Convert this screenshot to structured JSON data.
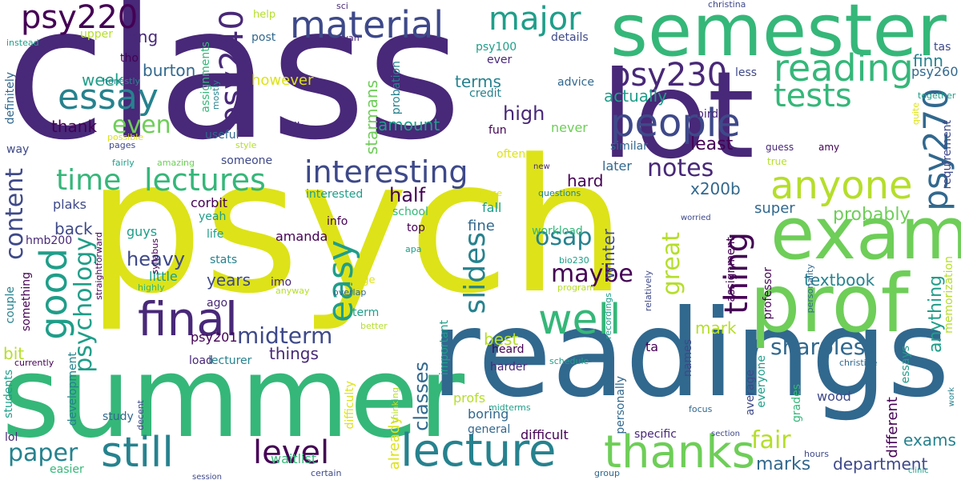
{
  "words": {
    "class": "class",
    "psych": "psych",
    "summer": "summer",
    "readings": "readings",
    "lot": "lot",
    "semester": "semester",
    "exam": "exam",
    "prof": "prof",
    "thanks": "thanks",
    "final": "final",
    "lecture": "lecture",
    "people": "people",
    "still": "still",
    "well": "well",
    "reading": "reading",
    "tests": "tests",
    "anyone": "anyone",
    "psy230": "psy230",
    "psy220": "psy220",
    "psy240": "psy240",
    "psy270": "psy270",
    "material": "material",
    "major": "major",
    "essay": "essay",
    "good": "good",
    "interesting": "interesting",
    "time": "time",
    "lectures": "lectures",
    "easy": "easy",
    "level": "level",
    "slides": "slides",
    "thing": "thing",
    "midterm": "midterm",
    "psychology": "psychology",
    "great": "great",
    "maybe": "maybe",
    "paper": "paper",
    "sharples": "sharples",
    "fair": "fair",
    "content": "content",
    "even": "even",
    "notes": "notes",
    "heavy": "heavy",
    "probably": "probably",
    "osap": "osap",
    "half": "half",
    "classes": "classes",
    "exams": "exams",
    "marks": "marks",
    "department": "department",
    "textbook": "textbook",
    "things": "things",
    "years": "years",
    "anything": "anything",
    "mark": "mark",
    "terms": "terms",
    "high": "high",
    "amount": "amount",
    "week": "week",
    "burton": "burton",
    "long": "long",
    "thank": "thank",
    "actually": "actually",
    "however": "however",
    "starmans": "starmans",
    "x200b": "x200b",
    "least": "least",
    "hard": "hard",
    "super": "super",
    "bit": "bit",
    "back": "back",
    "difficult": "difficult",
    "specific": "specific",
    "boring": "boring",
    "amanda": "amanda",
    "already": "already",
    "waitlist": "waitlist",
    "winter": "winter",
    "best": "best",
    "finn": "finn",
    "corbit": "corbit",
    "plaks": "plaks",
    "guys": "guys",
    "little": "little",
    "psy201": "psy201",
    "ta": "ta",
    "wood": "wood",
    "different": "different",
    "essays": "essays",
    "later": "later",
    "fall": "fall",
    "fine": "fine",
    "workload": "workload",
    "school": "school",
    "top": "top",
    "info": "info",
    "yeah": "yeah",
    "life": "life",
    "stats": "stats",
    "ago": "ago",
    "imo": "imo",
    "idk": "idk",
    "useful": "useful",
    "someone": "someone",
    "interested": "interested",
    "load": "load",
    "lecturer": "lecturer",
    "heard": "heard",
    "harder": "harder",
    "general": "general",
    "profs": "profs",
    "study": "study",
    "easier": "easier",
    "lol": "lol",
    "development": "development",
    "students": "students",
    "hmb200": "hmb200",
    "couple": "couple",
    "something": "something",
    "way": "way",
    "definitely": "definitely",
    "fun": "fun",
    "never": "never",
    "often": "often",
    "similar": "similar",
    "advice": "advice",
    "credit": "credit",
    "ever": "ever",
    "psy100": "psy100",
    "details": "details",
    "help": "help",
    "post": "post",
    "upper": "upper",
    "tho": "tho",
    "honestly": "honestly",
    "assignments": "assignments",
    "mostly": "mostly",
    "probation": "probation",
    "bird": "bird",
    "less": "less",
    "psy260": "psy260",
    "together": "together",
    "quite": "quite",
    "requirement": "requirement",
    "guess": "guess",
    "amy": "amy",
    "true": "true",
    "tas": "tas",
    "christina": "christina",
    "sci": "sci",
    "ryan": "ryan",
    "instead": "instead",
    "possible": "possible",
    "pages": "pages",
    "fairly": "fairly",
    "amazing": "amazing",
    "style": "style",
    "new": "new",
    "questions": "questions",
    "experience": "experience",
    "apa": "apa",
    "bio230": "bio230",
    "program": "program",
    "overlap": "overlap",
    "anyway": "anyway",
    "page": "page",
    "term": "term",
    "better": "better",
    "important": "important",
    "difficulty": "difficulty",
    "thinking": "thinking",
    "midterms": "midterms",
    "schedule": "schedule",
    "group": "group",
    "hours": "hours",
    "certain": "certain",
    "session": "session",
    "decent": "decent",
    "currently": "currently",
    "syllabus": "syllabus",
    "straightforward": "straightforward",
    "highly": "highly",
    "professor": "professor",
    "assignment": "assignment",
    "recordings": "recordings",
    "relatively": "relatively",
    "personally": "personally",
    "names": "names",
    "average": "average",
    "everyone": "everyone",
    "grades": "grades",
    "focus": "focus",
    "section": "section",
    "christine": "christine",
    "personality": "personality",
    "memorization": "memorization",
    "clinic": "clinic",
    "work": "work",
    "worried": "worried"
  }
}
